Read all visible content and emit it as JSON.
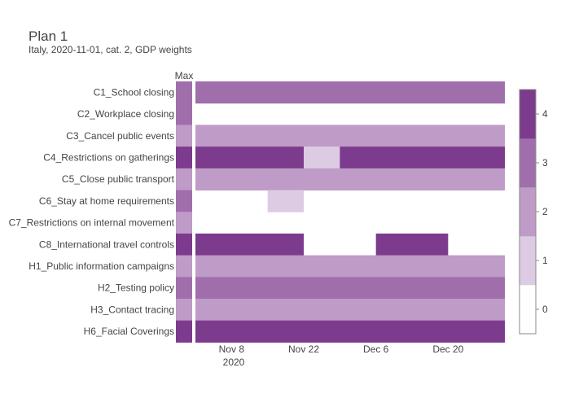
{
  "chart_data": {
    "type": "heatmap",
    "title": "Plan 1",
    "subtitle": "Italy, 2020-11-01, cat. 2, GDP weights",
    "max_label": "Max",
    "x_start": "2020-11-01",
    "x_end": "2020-12-31",
    "x_ticks": [
      "Nov 8",
      "Nov 22",
      "Dec 6",
      "Dec 20"
    ],
    "x_tick_dates": [
      "2020-11-08",
      "2020-11-22",
      "2020-12-06",
      "2020-12-20"
    ],
    "x_year_label": "2020",
    "colorbar": {
      "min": 0,
      "max": 4,
      "ticks": [
        "0",
        "1",
        "2",
        "3",
        "4"
      ]
    },
    "colors": [
      "#ffffff",
      "#dccbe2",
      "#bf9bc7",
      "#a06fab",
      "#7d3b8d"
    ],
    "rows": [
      {
        "label": "C1_School closing",
        "max": 3,
        "segments": [
          {
            "from": "2020-11-01",
            "to": "2020-12-31",
            "value": 3
          }
        ]
      },
      {
        "label": "C2_Workplace closing",
        "max": 3,
        "segments": []
      },
      {
        "label": "C3_Cancel public events",
        "max": 2,
        "segments": [
          {
            "from": "2020-11-01",
            "to": "2020-12-31",
            "value": 2
          }
        ]
      },
      {
        "label": "C4_Restrictions on gatherings",
        "max": 4,
        "segments": [
          {
            "from": "2020-11-01",
            "to": "2020-11-22",
            "value": 4
          },
          {
            "from": "2020-11-22",
            "to": "2020-11-29",
            "value": 1
          },
          {
            "from": "2020-11-29",
            "to": "2020-12-31",
            "value": 4
          }
        ]
      },
      {
        "label": "C5_Close public transport",
        "max": 2,
        "segments": [
          {
            "from": "2020-11-01",
            "to": "2020-12-31",
            "value": 2
          }
        ]
      },
      {
        "label": "C6_Stay at home requirements",
        "max": 3,
        "segments": [
          {
            "from": "2020-11-15",
            "to": "2020-11-22",
            "value": 1
          }
        ]
      },
      {
        "label": "C7_Restrictions on internal movement",
        "max": 2,
        "segments": []
      },
      {
        "label": "C8_International travel controls",
        "max": 4,
        "segments": [
          {
            "from": "2020-11-01",
            "to": "2020-11-22",
            "value": 4
          },
          {
            "from": "2020-12-06",
            "to": "2020-12-20",
            "value": 4
          }
        ]
      },
      {
        "label": "H1_Public information campaigns",
        "max": 2,
        "segments": [
          {
            "from": "2020-11-01",
            "to": "2020-12-31",
            "value": 2
          }
        ]
      },
      {
        "label": "H2_Testing policy",
        "max": 3,
        "segments": [
          {
            "from": "2020-11-01",
            "to": "2020-12-31",
            "value": 3
          }
        ]
      },
      {
        "label": "H3_Contact tracing",
        "max": 2,
        "segments": [
          {
            "from": "2020-11-01",
            "to": "2020-12-31",
            "value": 2
          }
        ]
      },
      {
        "label": "H6_Facial Coverings",
        "max": 4,
        "segments": [
          {
            "from": "2020-11-01",
            "to": "2020-12-31",
            "value": 4
          }
        ]
      }
    ]
  }
}
